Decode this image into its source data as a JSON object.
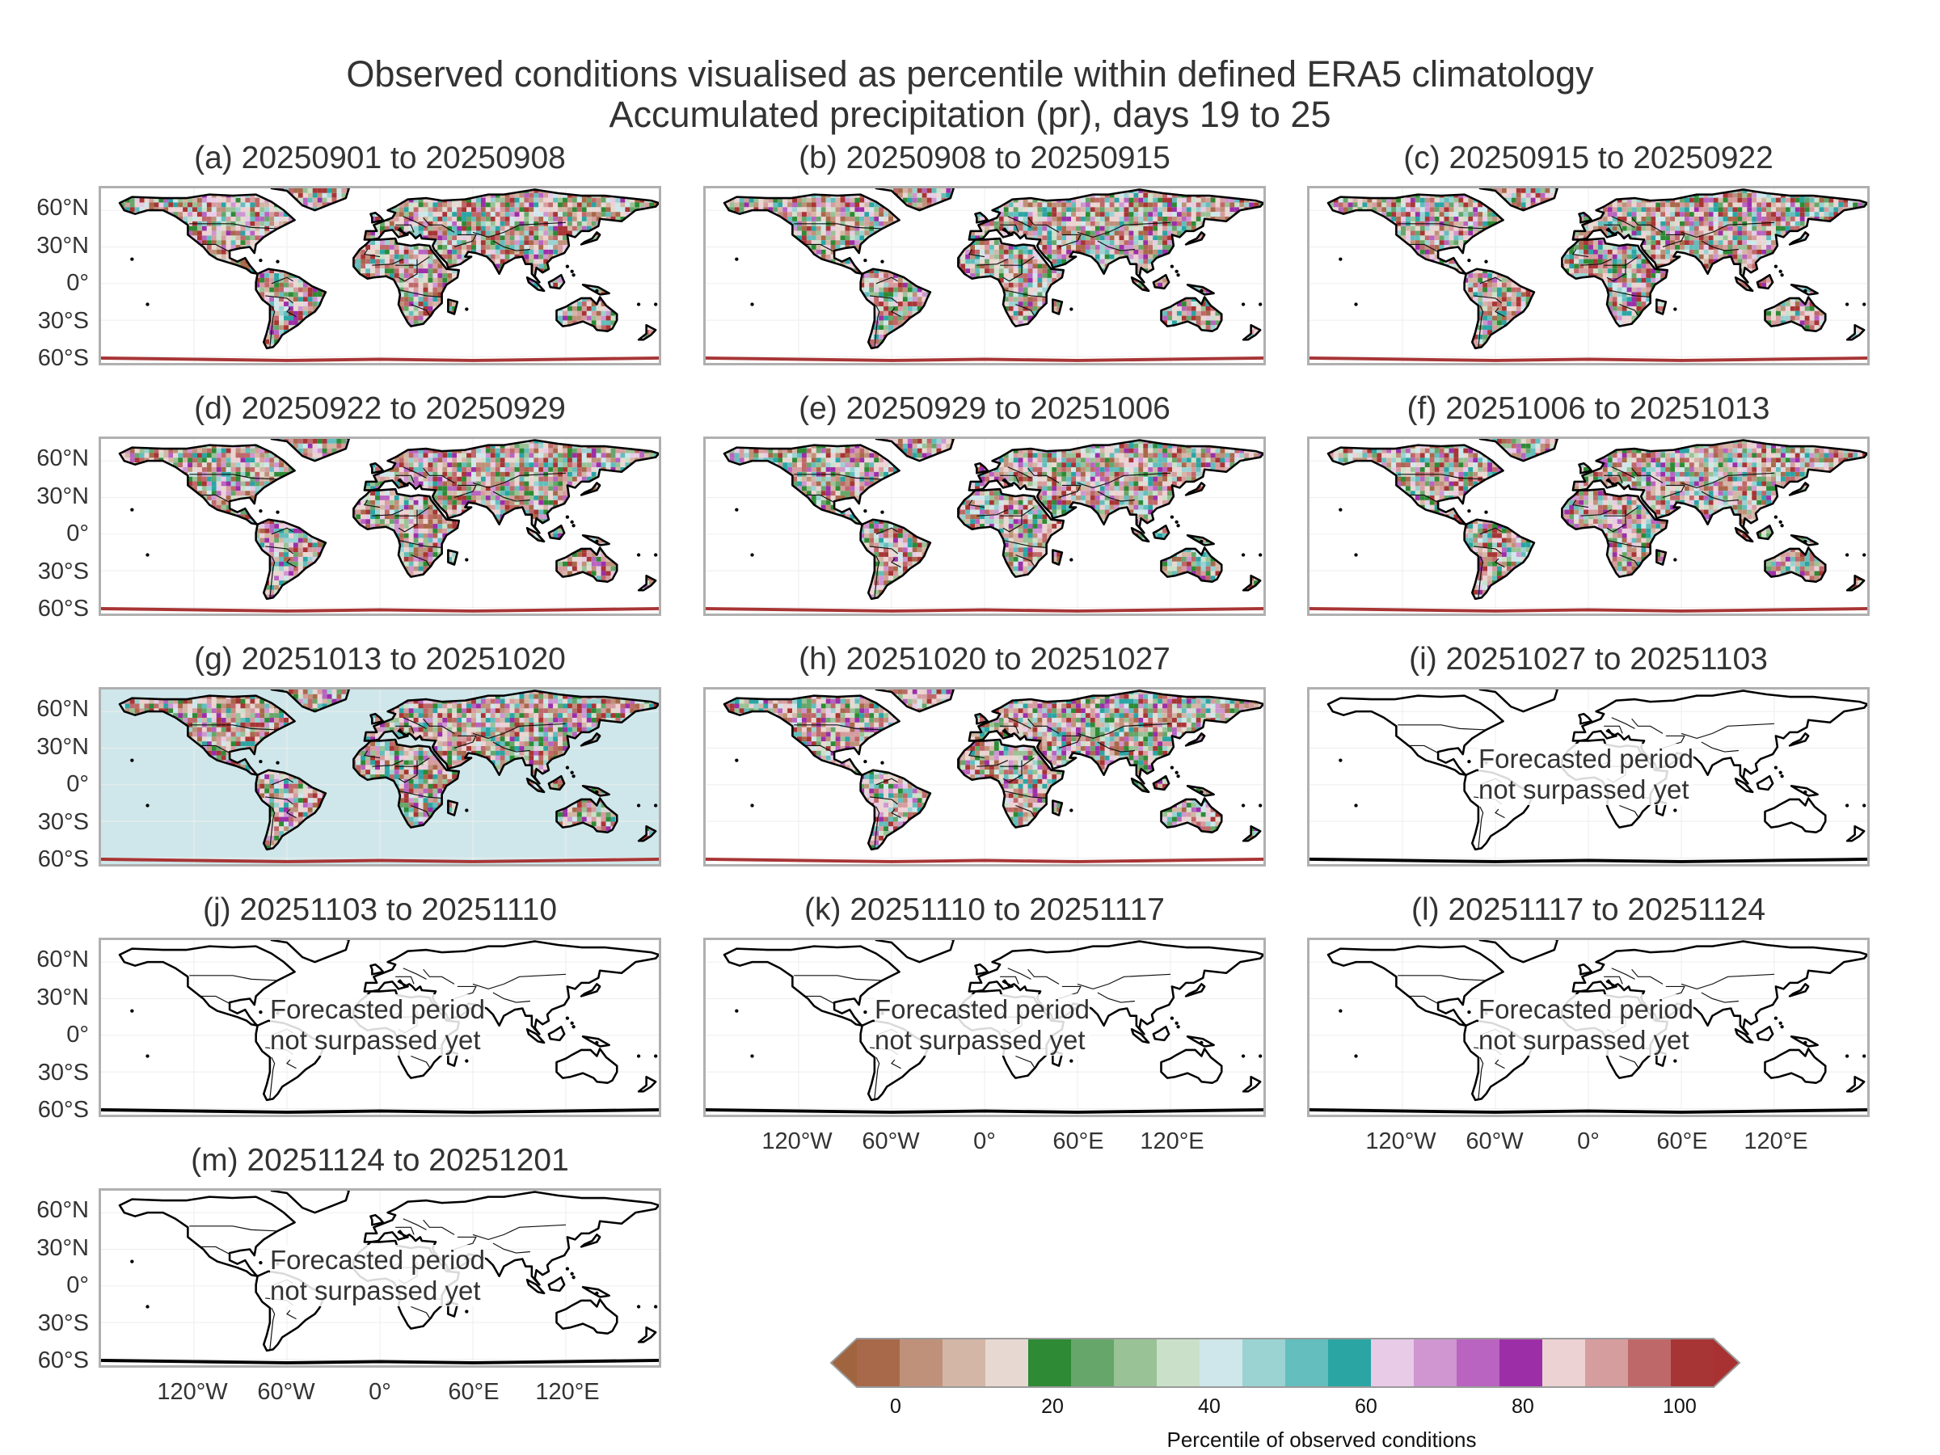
{
  "header": {
    "title_line1": "Observed conditions visualised as percentile within defined ERA5 climatology",
    "title_line2": "Accumulated precipitation (pr), days 19 to 25"
  },
  "panels": [
    {
      "label": "(a) 20250901 to 20250908",
      "observed": true
    },
    {
      "label": "(b) 20250908 to 20250915",
      "observed": true
    },
    {
      "label": "(c) 20250915 to 20250922",
      "observed": true
    },
    {
      "label": "(d) 20250922 to 20250929",
      "observed": true
    },
    {
      "label": "(e) 20250929 to 20251006",
      "observed": true
    },
    {
      "label": "(f) 20251006 to 20251013",
      "observed": true
    },
    {
      "label": "(g) 20251013 to 20251020",
      "observed": true,
      "ocean_fill": true
    },
    {
      "label": "(h) 20251020 to 20251027",
      "observed": true
    },
    {
      "label": "(i) 20251027 to 20251103",
      "observed": false
    },
    {
      "label": "(j) 20251103 to 20251110",
      "observed": false
    },
    {
      "label": "(k) 20251110 to 20251117",
      "observed": false
    },
    {
      "label": "(l) 20251117 to 20251124",
      "observed": false
    },
    {
      "label": "(m) 20251124 to 20251201",
      "observed": false
    }
  ],
  "forecast_note": {
    "line1": "Forecasted period",
    "line2": "not surpassed yet"
  },
  "lat_labels": [
    "60°N",
    "30°N",
    "0°",
    "30°S",
    "60°S"
  ],
  "lon_labels": [
    "120°W",
    "60°W",
    "0°",
    "60°E",
    "120°E"
  ],
  "colorbar": {
    "label": "Percentile of observed conditions",
    "ticks": [
      "0",
      "20",
      "40",
      "60",
      "80",
      "100"
    ],
    "under_color": "#a0643e",
    "over_color": "#a83232",
    "colors": [
      "#a8694a",
      "#bf917a",
      "#d4b6a6",
      "#e7d9d2",
      "#2e8a35",
      "#66a66a",
      "#99c296",
      "#cbe0c9",
      "#cfe7ea",
      "#9bd2d2",
      "#63bebd",
      "#2aa5a4",
      "#e7cbe7",
      "#cf96d2",
      "#b864c0",
      "#9c2fa8",
      "#ecd2d3",
      "#d69d9f",
      "#bf6869",
      "#a83535"
    ]
  }
}
